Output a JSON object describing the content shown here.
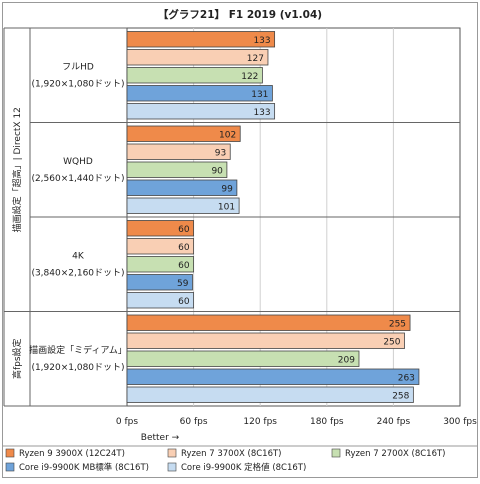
{
  "chart_data": {
    "type": "bar",
    "orientation": "horizontal",
    "title": "【グラフ21】 F1 2019 (v1.04)",
    "xlabel": "Better →",
    "x_tick_labels": [
      "0 fps",
      "60 fps",
      "120 fps",
      "180 fps",
      "240 fps",
      "300 fps"
    ],
    "xlim": [
      0,
      300
    ],
    "grid": true,
    "legend_position": "bottom",
    "group_labels": [
      {
        "text": "描画設定「超高」| DirectX 12",
        "groups": [
          0,
          1,
          2
        ]
      },
      {
        "text": "高fps設定",
        "groups": [
          3
        ]
      }
    ],
    "categories": [
      [
        "フルHD",
        "(1,920×1,080ドット)"
      ],
      [
        "WQHD",
        "(2,560×1,440ドット)"
      ],
      [
        "4K",
        "(3,840×2,160ドット)"
      ],
      [
        "描画設定「ミディアム」",
        "(1,920×1,080ドット)"
      ]
    ],
    "series": [
      {
        "name": "Ryzen 9 3900X (12C24T)",
        "color": "#ef8a4a",
        "values": [
          133,
          102,
          60,
          255
        ]
      },
      {
        "name": "Ryzen 7 3700X (8C16T)",
        "color": "#f9cfb4",
        "values": [
          127,
          93,
          60,
          250
        ]
      },
      {
        "name": "Ryzen 7 2700X (8C16T)",
        "color": "#c7e0b2",
        "values": [
          122,
          90,
          60,
          209
        ]
      },
      {
        "name": "Core i9-9900K MB標準 (8C16T)",
        "color": "#6fa3da",
        "values": [
          131,
          99,
          59,
          263
        ]
      },
      {
        "name": "Core i9-9900K 定格値 (8C16T)",
        "color": "#c6dcf1",
        "values": [
          133,
          101,
          60,
          258
        ]
      }
    ]
  }
}
